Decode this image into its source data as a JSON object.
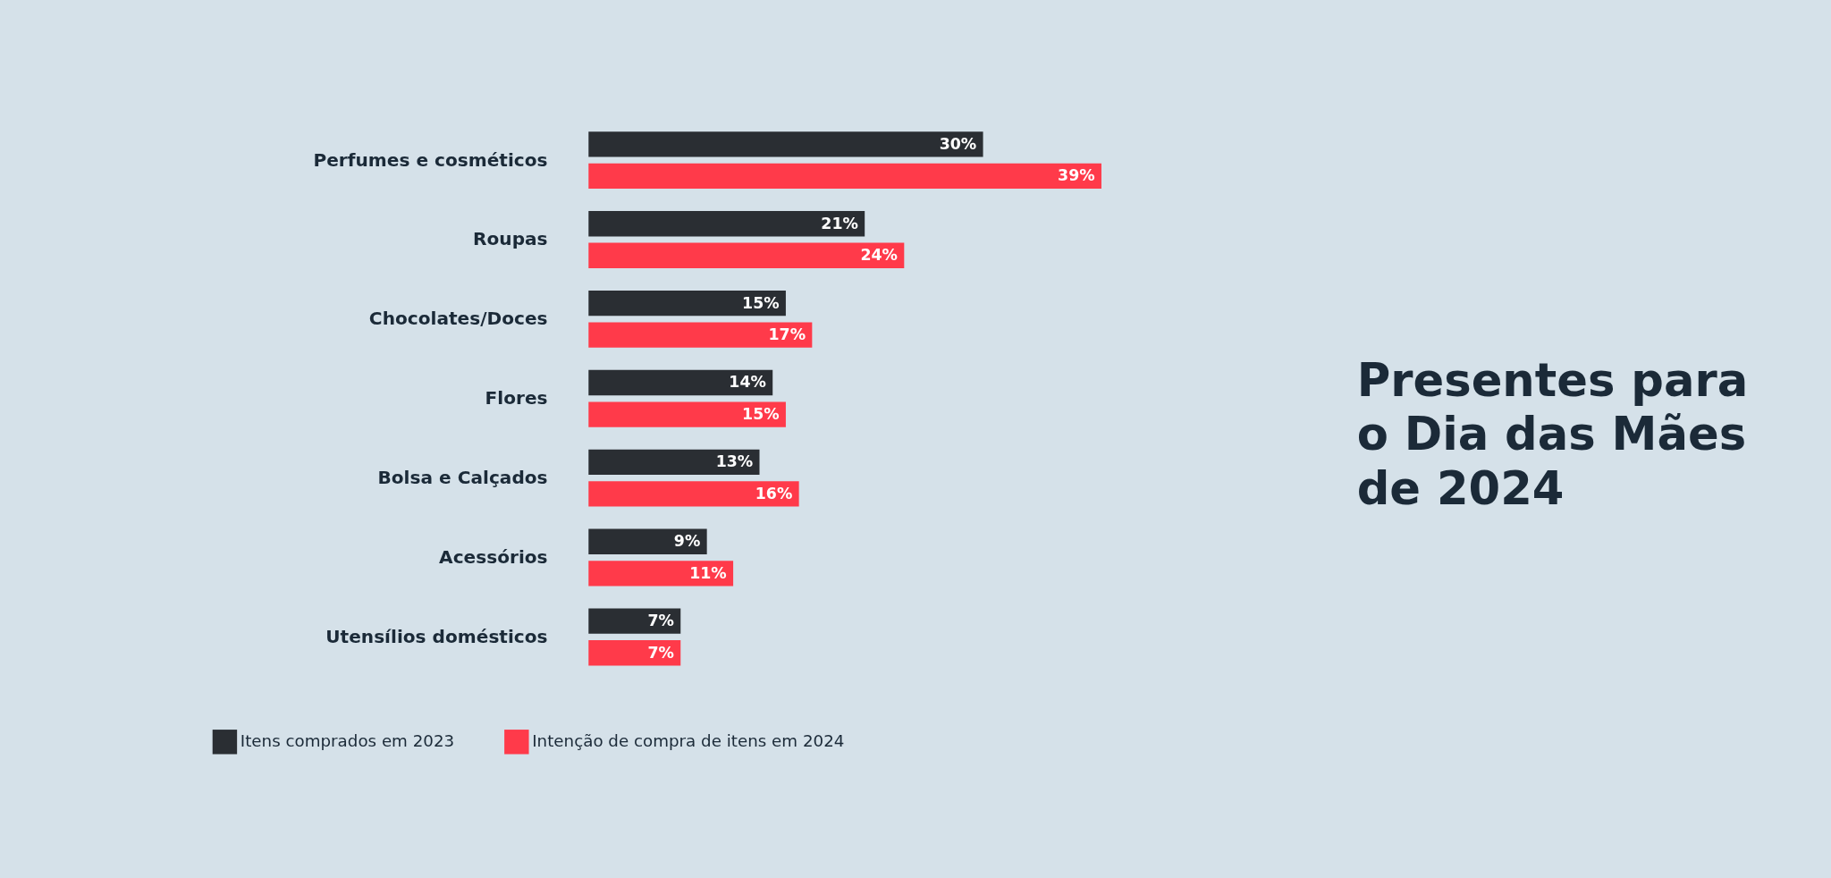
{
  "chart_data": {
    "type": "bar",
    "orientation": "horizontal",
    "title": "Presentes para o Dia das Mães de 2024",
    "categories": [
      "Perfumes e cosméticos",
      "Roupas",
      "Chocolates/Doces",
      "Flores",
      "Bolsa e Calçados",
      "Acessórios",
      "Utensílios domésticos"
    ],
    "series": [
      {
        "name": "Itens comprados em 2023",
        "color": "#2a2e33",
        "values": [
          30,
          21,
          15,
          14,
          13,
          9,
          7
        ],
        "value_labels": [
          "30%",
          "21%",
          "15%",
          "14%",
          "13%",
          "9%",
          "7%"
        ]
      },
      {
        "name": "Intenção de compra de itens em 2024",
        "color": "#ff3a4a",
        "values": [
          39,
          24,
          17,
          15,
          16,
          11,
          7
        ],
        "value_labels": [
          "39%",
          "24%",
          "17%",
          "15%",
          "16%",
          "11%",
          "7%"
        ]
      }
    ],
    "legend": "bottom left",
    "grid": false
  }
}
